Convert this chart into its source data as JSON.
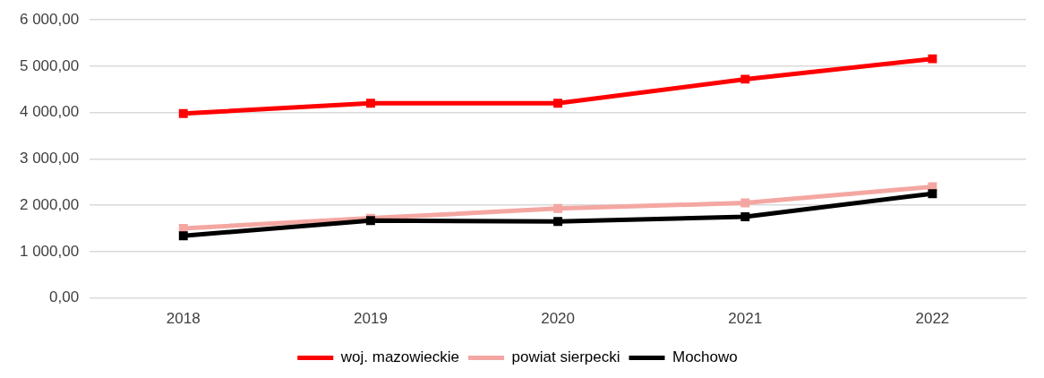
{
  "chart_data": {
    "type": "line",
    "categories": [
      "2018",
      "2019",
      "2020",
      "2021",
      "2022"
    ],
    "series": [
      {
        "name": "woj. mazowieckie",
        "color": "#ff0000",
        "values": [
          3980,
          4200,
          4200,
          4720,
          5160
        ]
      },
      {
        "name": "powiat sierpecki",
        "color": "#f4a7a2",
        "values": [
          1500,
          1720,
          1930,
          2050,
          2400
        ]
      },
      {
        "name": "Mochowo",
        "color": "#000000",
        "values": [
          1340,
          1670,
          1650,
          1750,
          2250
        ]
      }
    ],
    "ylim": [
      0,
      6000
    ],
    "yticks": [
      {
        "value": 0,
        "label": "0,00"
      },
      {
        "value": 1000,
        "label": "1 000,00"
      },
      {
        "value": 2000,
        "label": "2 000,00"
      },
      {
        "value": 3000,
        "label": "3 000,00"
      },
      {
        "value": 4000,
        "label": "4 000,00"
      },
      {
        "value": 5000,
        "label": "5 000,00"
      },
      {
        "value": 6000,
        "label": "6 000,00"
      }
    ],
    "grid": "y",
    "legend": "bottom",
    "marker": "square",
    "line_style": "solid"
  }
}
